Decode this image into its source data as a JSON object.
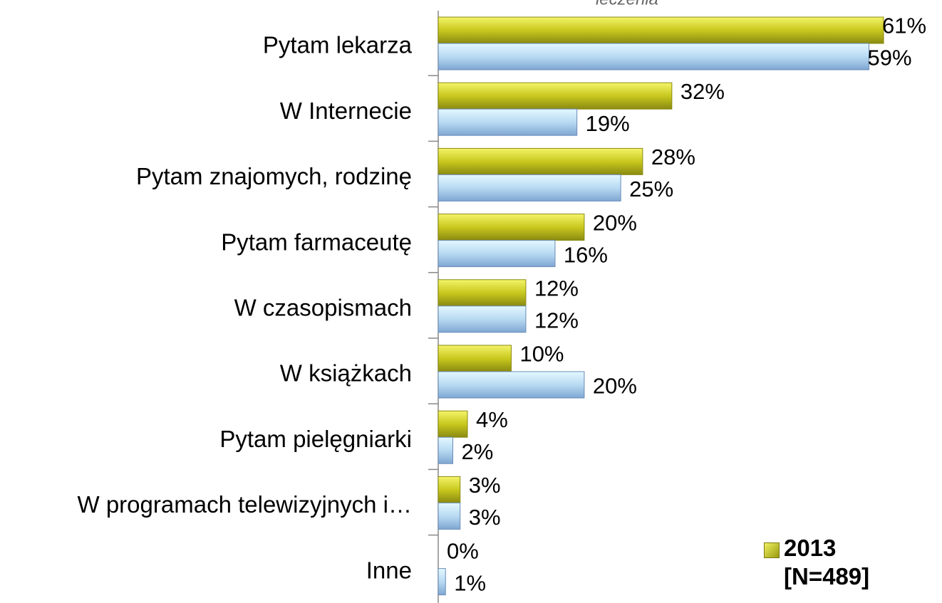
{
  "chart_data": {
    "type": "bar",
    "orientation": "horizontal",
    "title": "leczenia",
    "categories": [
      "Pytam lekarza",
      "W Internecie",
      "Pytam znajomych, rodzinę",
      "Pytam farmaceutę",
      "W czasopismach",
      "W książkach",
      "Pytam pielęgniarki",
      "W programach telewizyjnych i…",
      "Inne"
    ],
    "series": [
      {
        "name": "2013 [N=489]",
        "color": "#c8c81e",
        "values": [
          61,
          32,
          28,
          20,
          12,
          10,
          4,
          3,
          0
        ],
        "value_labels": [
          "61%",
          "32%",
          "28%",
          "20%",
          "12%",
          "10%",
          "4%",
          "3%",
          "0%"
        ]
      },
      {
        "color": "#8fb4dc",
        "values": [
          59,
          19,
          25,
          16,
          12,
          20,
          2,
          3,
          1
        ],
        "value_labels": [
          "59%",
          "19%",
          "25%",
          "16%",
          "12%",
          "20%",
          "2%",
          "3%",
          "1%"
        ]
      }
    ],
    "xlim": [
      0,
      61
    ],
    "legend": "bottom-right"
  }
}
